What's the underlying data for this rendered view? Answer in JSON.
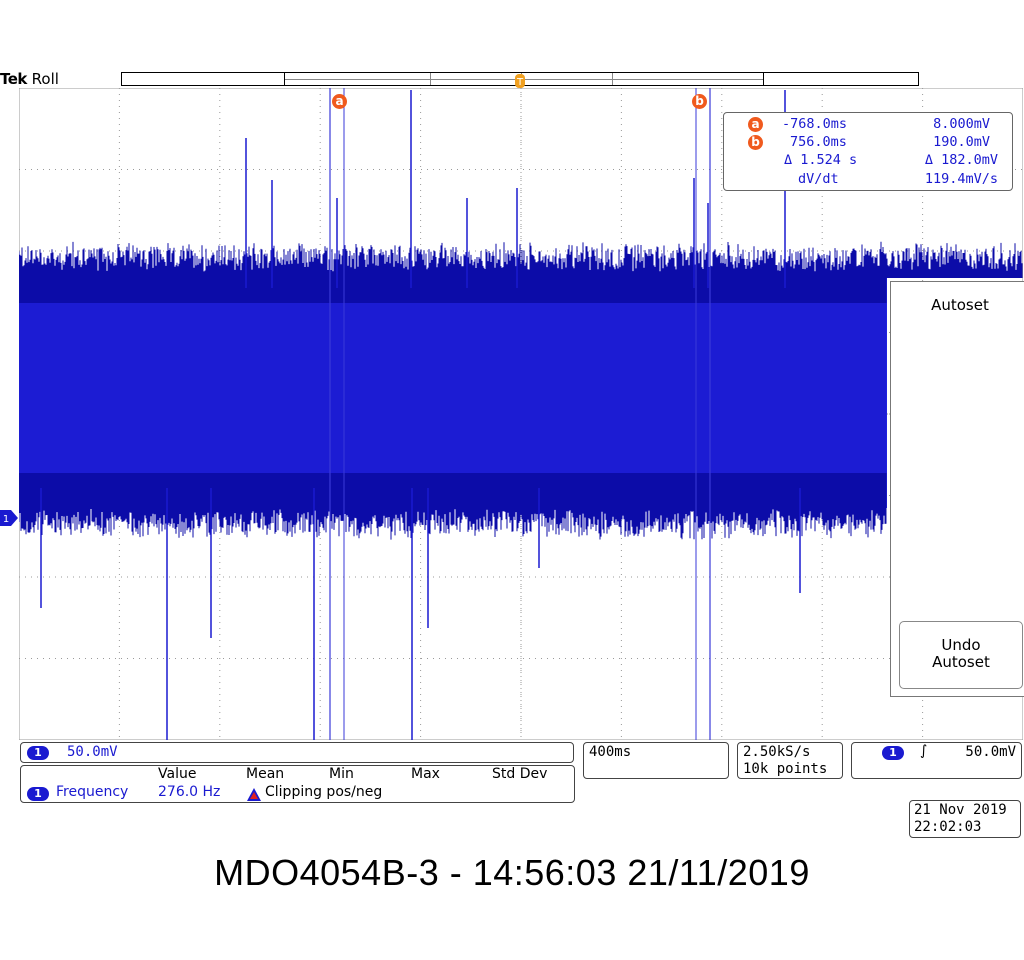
{
  "header": {
    "brand": "Tek",
    "mode": "Roll"
  },
  "trigger_marker": "T",
  "cursor_readout": {
    "a": {
      "label": "a",
      "time": "-768.0ms",
      "voltage": "8.000mV"
    },
    "b": {
      "label": "b",
      "time": "756.0ms",
      "voltage": "190.0mV"
    },
    "delta_time": "Δ 1.524 s",
    "delta_voltage": "Δ 182.0mV",
    "dvdt_label": "dV/dt",
    "dvdt_value": "119.4mV/s"
  },
  "side_menu": {
    "autoset_label": "Autoset",
    "undo_line1": "Undo",
    "undo_line2": "Autoset"
  },
  "channel_readout": {
    "channel": "1",
    "scale": "50.0mV"
  },
  "measurements": {
    "headers": [
      "Value",
      "Mean",
      "Min",
      "Max",
      "Std Dev"
    ],
    "channel": "1",
    "name": "Frequency",
    "value": "276.0 Hz",
    "warning": "Clipping pos/neg"
  },
  "timebase": "400ms",
  "acquisition": {
    "sample_rate": "2.50kS/s",
    "record_length": "10k points"
  },
  "trigger_readout": {
    "channel": "1",
    "slope_symbol": "∫",
    "level": "50.0mV"
  },
  "datetime": {
    "date": "21 Nov 2019",
    "time": "22:02:03"
  },
  "ground_marker": "1",
  "footer_caption": "MDO4054B-3 - 14:56:03   21/11/2019",
  "colors": {
    "trace": "#1a1ad0",
    "cursor_marker": "#f05a1e",
    "trigger_marker": "#f0a020",
    "graticule": "#9a9a9a"
  }
}
